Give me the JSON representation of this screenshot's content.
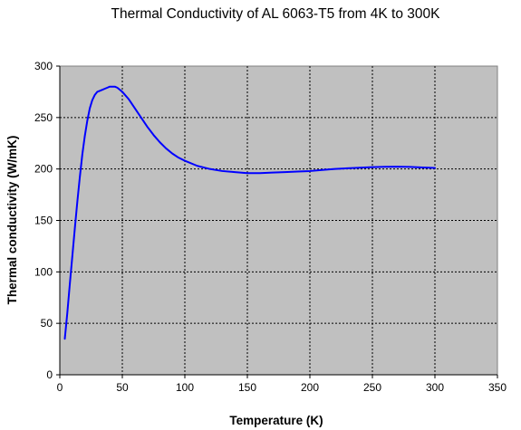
{
  "chart_data": {
    "type": "line",
    "title": "Thermal Conductivity of AL 6063-T5 from 4K to 300K",
    "xlabel": "Temperature (K)",
    "ylabel": "Thermal conductivity (W/mK)",
    "xlim": [
      0,
      350
    ],
    "ylim": [
      0,
      300
    ],
    "x_ticks": [
      0,
      50,
      100,
      150,
      200,
      250,
      300,
      350
    ],
    "y_ticks": [
      0,
      50,
      100,
      150,
      200,
      250,
      300
    ],
    "grid": true,
    "legend": "none",
    "colors": {
      "plot_background": "#c0c0c0",
      "series": "#0000ff"
    },
    "series": [
      {
        "x": [
          4,
          6,
          8,
          10,
          12,
          14,
          16,
          18,
          20,
          22,
          24,
          26,
          28,
          30,
          32,
          34,
          36,
          38,
          40,
          42,
          44,
          46,
          48,
          50,
          55,
          60,
          65,
          70,
          75,
          80,
          85,
          90,
          95,
          100,
          110,
          120,
          130,
          140,
          150,
          160,
          170,
          180,
          190,
          200,
          210,
          220,
          230,
          240,
          250,
          260,
          270,
          280,
          290,
          300
        ],
        "values": [
          35,
          60,
          88,
          115,
          142,
          168,
          192,
          214,
          232,
          247,
          259,
          267,
          272,
          275,
          276,
          277,
          278,
          279,
          280,
          280,
          280,
          279,
          277,
          275,
          268,
          259,
          250,
          241,
          233,
          226,
          220,
          215,
          211,
          208,
          203,
          200,
          198,
          197,
          196,
          196,
          196.5,
          197,
          197.5,
          198,
          199,
          200,
          200.7,
          201.3,
          201.8,
          202.1,
          202.2,
          202,
          201.5,
          201
        ]
      }
    ]
  }
}
